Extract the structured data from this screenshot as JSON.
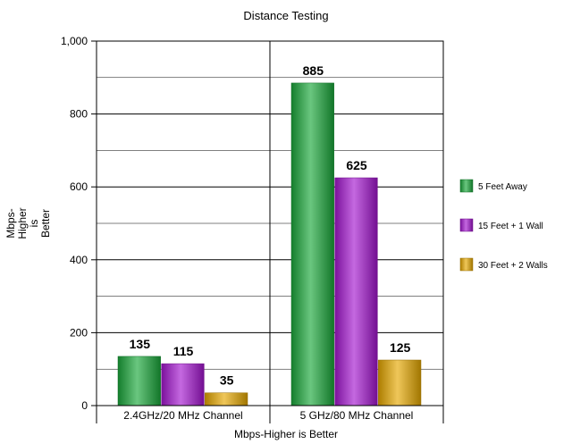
{
  "chart_data": {
    "type": "bar",
    "title": "Distance Testing",
    "xlabel": "Mbps-Higher is Better",
    "ylabel_lines": [
      "Mbps-",
      "Higher",
      "is",
      "Better"
    ],
    "categories": [
      "2.4GHz/20 MHz Channel",
      "5 GHz/80 MHz Channel"
    ],
    "series": [
      {
        "name": "5 Feet Away",
        "values": [
          135,
          885
        ],
        "color": "#1aa83a"
      },
      {
        "name": "15 Feet + 1 Wall",
        "values": [
          115,
          625
        ],
        "color": "#a416d0"
      },
      {
        "name": "30 Feet + 2 Walls",
        "values": [
          35,
          125
        ],
        "color": "#e6a800"
      }
    ],
    "data_labels": [
      [
        "135",
        "885"
      ],
      [
        "115",
        "625"
      ],
      [
        "35",
        "125"
      ]
    ],
    "ylim": [
      0,
      1000
    ],
    "yticks": [
      0,
      200,
      400,
      600,
      800,
      1000
    ],
    "ytick_labels": [
      "0",
      "200",
      "400",
      "600",
      "800",
      "1,000"
    ],
    "grid": true,
    "legend_position": "right"
  }
}
